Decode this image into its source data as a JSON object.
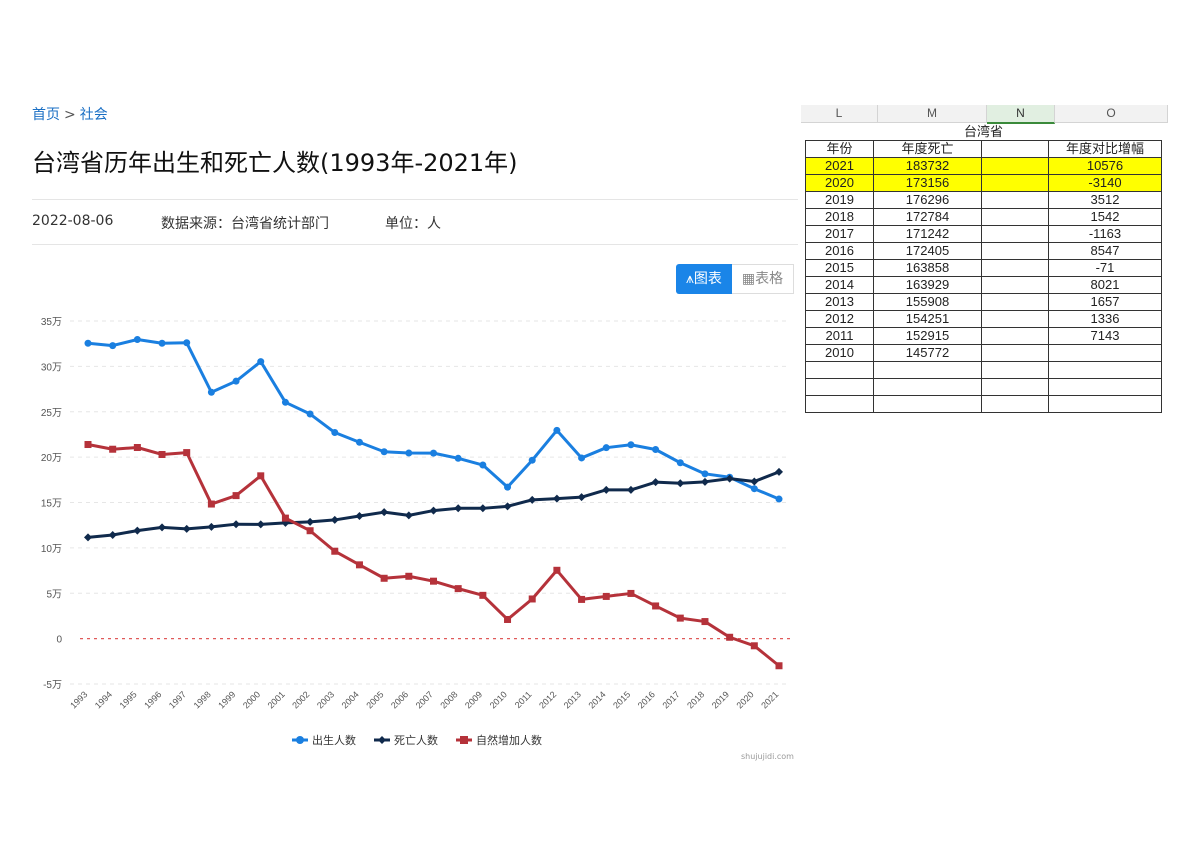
{
  "breadcrumb": {
    "home": "首页",
    "separator": ">",
    "category": "社会"
  },
  "title": "台湾省历年出生和死亡人数(1993年-2021年)",
  "meta": {
    "date": "2022-08-06",
    "source": "数据来源：台湾省统计部门",
    "unit": "单位：人"
  },
  "toggle": {
    "chart_label": "图表",
    "table_label": "表格"
  },
  "credit": "shujujidi.com",
  "chart_data": {
    "type": "line",
    "x": [
      "1993",
      "1994",
      "1995",
      "1996",
      "1997",
      "1998",
      "1999",
      "2000",
      "2001",
      "2002",
      "2003",
      "2004",
      "2005",
      "2006",
      "2007",
      "2008",
      "2009",
      "2010",
      "2011",
      "2012",
      "2013",
      "2014",
      "2015",
      "2016",
      "2017",
      "2018",
      "2019",
      "2020",
      "2021"
    ],
    "ylim": [
      -50000,
      350000
    ],
    "yticks": [
      -50000,
      0,
      50000,
      100000,
      150000,
      200000,
      250000,
      300000,
      350000
    ],
    "ytick_labels": [
      "-5万",
      "0",
      "5万",
      "10万",
      "15万",
      "20万",
      "25万",
      "30万",
      "35万"
    ],
    "series": [
      {
        "name": "出生人数",
        "color": "#1a7fe0",
        "marker": "circle",
        "values": [
          325500,
          322900,
          329600,
          325500,
          326000,
          271500,
          283700,
          305300,
          260400,
          247500,
          227100,
          216400,
          205900,
          204500,
          204400,
          198700,
          191300,
          166900,
          196600,
          229500,
          199100,
          210400,
          213600,
          208400,
          193800,
          181600,
          177800,
          165200,
          153800
        ]
      },
      {
        "name": "死亡人数",
        "color": "#102a4c",
        "marker": "diamond",
        "values": [
          111600,
          114200,
          119000,
          122600,
          121000,
          123200,
          126100,
          125900,
          127600,
          128600,
          130800,
          135100,
          139400,
          135800,
          141100,
          143600,
          143600,
          145772,
          152915,
          154251,
          155908,
          163929,
          163858,
          172405,
          171242,
          172784,
          176296,
          173156,
          183732
        ]
      },
      {
        "name": "自然增加人数",
        "color": "#b5323a",
        "marker": "square",
        "values": [
          213900,
          208700,
          210600,
          202900,
          205000,
          148300,
          157600,
          179400,
          132800,
          118900,
          96300,
          81300,
          66500,
          68700,
          63300,
          55100,
          47700,
          21100,
          43700,
          75300,
          43200,
          46500,
          49800,
          36000,
          22600,
          18800,
          1500,
          -7900,
          -29900
        ]
      }
    ],
    "zero_line": {
      "color": "#e05a5a",
      "style": "dotted"
    },
    "legend_position": "bottom-center",
    "grid": "horizontal dashed"
  },
  "sheet": {
    "columns": [
      "L",
      "M",
      "N",
      "O"
    ],
    "caption": "台湾省",
    "headers": [
      "年份",
      "年度死亡",
      "",
      "年度对比增幅"
    ],
    "rows": [
      {
        "year": "2021",
        "deaths": "183732",
        "blank": "",
        "change": "10576",
        "highlight": true
      },
      {
        "year": "2020",
        "deaths": "173156",
        "blank": "",
        "change": "-3140",
        "highlight": true
      },
      {
        "year": "2019",
        "deaths": "176296",
        "blank": "",
        "change": "3512",
        "highlight": false
      },
      {
        "year": "2018",
        "deaths": "172784",
        "blank": "",
        "change": "1542",
        "highlight": false
      },
      {
        "year": "2017",
        "deaths": "171242",
        "blank": "",
        "change": "-1163",
        "highlight": false
      },
      {
        "year": "2016",
        "deaths": "172405",
        "blank": "",
        "change": "8547",
        "highlight": false
      },
      {
        "year": "2015",
        "deaths": "163858",
        "blank": "",
        "change": "-71",
        "highlight": false
      },
      {
        "year": "2014",
        "deaths": "163929",
        "blank": "",
        "change": "8021",
        "highlight": false
      },
      {
        "year": "2013",
        "deaths": "155908",
        "blank": "",
        "change": "1657",
        "highlight": false
      },
      {
        "year": "2012",
        "deaths": "154251",
        "blank": "",
        "change": "1336",
        "highlight": false
      },
      {
        "year": "2011",
        "deaths": "152915",
        "blank": "",
        "change": "7143",
        "highlight": false
      },
      {
        "year": "2010",
        "deaths": "145772",
        "blank": "",
        "change": "",
        "highlight": false
      },
      {
        "year": "",
        "deaths": "",
        "blank": "",
        "change": "",
        "highlight": false
      },
      {
        "year": "",
        "deaths": "",
        "blank": "",
        "change": "",
        "highlight": false
      },
      {
        "year": "",
        "deaths": "",
        "blank": "",
        "change": "",
        "highlight": false
      }
    ]
  }
}
